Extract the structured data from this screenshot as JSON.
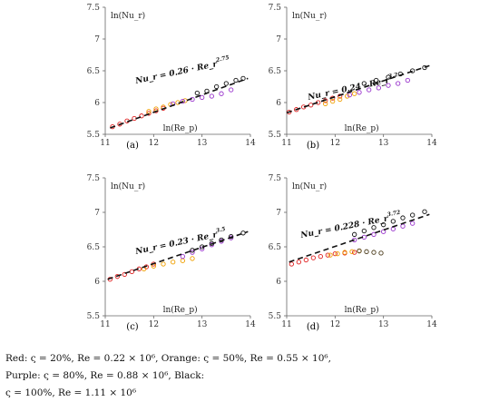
{
  "chart_data": [
    {
      "type": "scatter",
      "label": "(a)",
      "xlabel": "ln(Re_p)",
      "ylabel": "ln(Nu_r)",
      "xlim": [
        11,
        14
      ],
      "ylim": [
        5.5,
        7.5
      ],
      "xticks": [
        11,
        12,
        13,
        14
      ],
      "yticks": [
        5.5,
        6,
        6.5,
        7,
        7.5
      ],
      "annotation": {
        "base": "Nu_r = 0.26 · Re_r",
        "exp": "2.75"
      },
      "series": [
        {
          "color": "#e02020",
          "x": [
            11.15,
            11.3,
            11.45,
            11.6,
            11.75,
            11.9,
            12.05,
            12.2
          ],
          "y": [
            5.62,
            5.66,
            5.71,
            5.75,
            5.79,
            5.83,
            5.87,
            5.91
          ]
        },
        {
          "color": "#f0a000",
          "x": [
            11.9,
            12.05,
            12.2,
            12.35,
            12.5,
            12.65
          ],
          "y": [
            5.86,
            5.9,
            5.93,
            5.97,
            6.0,
            6.03
          ]
        },
        {
          "color": "#9933cc",
          "x": [
            12.4,
            12.6,
            12.8,
            13.0,
            13.2,
            13.4,
            13.6
          ],
          "y": [
            5.98,
            6.02,
            6.05,
            6.08,
            6.1,
            6.14,
            6.2
          ]
        },
        {
          "color": "#111111",
          "x": [
            12.9,
            13.1,
            13.3,
            13.5,
            13.7,
            13.85
          ],
          "y": [
            6.15,
            6.18,
            6.25,
            6.3,
            6.35,
            6.38
          ]
        }
      ],
      "fit": {
        "x": [
          11.1,
          13.95
        ],
        "y": [
          5.6,
          6.38
        ]
      }
    },
    {
      "type": "scatter",
      "label": "(b)",
      "xlabel": "ln(Re_p)",
      "ylabel": "ln(Nu_r)",
      "xlim": [
        11,
        14
      ],
      "ylim": [
        5.5,
        7.5
      ],
      "xticks": [
        11,
        12,
        13,
        14
      ],
      "yticks": [
        5.5,
        6,
        6.5,
        7,
        7.5
      ],
      "annotation": {
        "base": "Nu_r = 0.24 · Re_r",
        "exp": "3.2"
      },
      "series": [
        {
          "color": "#e02020",
          "x": [
            11.05,
            11.2,
            11.35,
            11.5,
            11.65,
            11.8,
            11.95,
            12.1
          ],
          "y": [
            5.85,
            5.89,
            5.93,
            5.96,
            6.0,
            6.03,
            6.07,
            6.1
          ]
        },
        {
          "color": "#f0a000",
          "x": [
            11.8,
            11.95,
            12.1,
            12.25,
            12.4
          ],
          "y": [
            5.98,
            6.02,
            6.05,
            6.1,
            6.14
          ]
        },
        {
          "color": "#9933cc",
          "x": [
            12.3,
            12.5,
            12.7,
            12.9,
            13.1,
            13.3,
            13.5
          ],
          "y": [
            6.12,
            6.16,
            6.2,
            6.23,
            6.27,
            6.3,
            6.35
          ]
        },
        {
          "color": "#111111",
          "x": [
            12.6,
            12.85,
            13.1,
            13.35,
            13.6,
            13.85
          ],
          "y": [
            6.3,
            6.35,
            6.4,
            6.45,
            6.5,
            6.55
          ]
        }
      ],
      "fit": {
        "x": [
          11.0,
          13.95
        ],
        "y": [
          5.84,
          6.58
        ]
      }
    },
    {
      "type": "scatter",
      "label": "(c)",
      "xlabel": "ln(Re_p)",
      "ylabel": "ln(Nu_r)",
      "xlim": [
        11,
        14
      ],
      "ylim": [
        5.5,
        7.5
      ],
      "xticks": [
        11,
        12,
        13,
        14
      ],
      "yticks": [
        5.5,
        6,
        6.5,
        7,
        7.5
      ],
      "annotation": {
        "base": "Nu_r = 0.23 · Re_r",
        "exp": "3.5"
      },
      "series": [
        {
          "color": "#e02020",
          "x": [
            11.1,
            11.25,
            11.4,
            11.55,
            11.7,
            11.85,
            12.0
          ],
          "y": [
            6.03,
            6.07,
            6.1,
            6.14,
            6.18,
            6.21,
            6.25
          ]
        },
        {
          "color": "#f0a000",
          "x": [
            11.8,
            12.0,
            12.2,
            12.4,
            12.6,
            12.8
          ],
          "y": [
            6.18,
            6.22,
            6.25,
            6.28,
            6.3,
            6.33
          ]
        },
        {
          "color": "#9933cc",
          "x": [
            12.6,
            12.8,
            13.0,
            13.2,
            13.4,
            13.6
          ],
          "y": [
            6.36,
            6.42,
            6.47,
            6.53,
            6.58,
            6.63
          ]
        },
        {
          "color": "#111111",
          "x": [
            12.8,
            13.0,
            13.2,
            13.4,
            13.6,
            13.85
          ],
          "y": [
            6.45,
            6.5,
            6.55,
            6.6,
            6.65,
            6.7
          ]
        }
      ],
      "fit": {
        "x": [
          11.05,
          13.95
        ],
        "y": [
          6.03,
          6.72
        ]
      }
    },
    {
      "type": "scatter",
      "label": "(d)",
      "xlabel": "ln(Re_p)",
      "ylabel": "ln(Nu_r)",
      "xlim": [
        11,
        14
      ],
      "ylim": [
        5.5,
        7.5
      ],
      "xticks": [
        11,
        12,
        13,
        14
      ],
      "yticks": [
        5.5,
        6,
        6.5,
        7,
        7.5
      ],
      "annotation": {
        "base": "Nu_r = 0.228 · Re_r",
        "exp": "3.72"
      },
      "series": [
        {
          "color": "#e02020",
          "x": [
            11.1,
            11.25,
            11.4,
            11.55,
            11.7,
            11.85,
            12.0,
            12.2,
            12.4
          ],
          "y": [
            6.25,
            6.28,
            6.31,
            6.34,
            6.36,
            6.38,
            6.4,
            6.41,
            6.42
          ]
        },
        {
          "color": "#f0a000",
          "x": [
            11.9,
            12.05,
            12.2,
            12.35,
            12.5
          ],
          "y": [
            6.38,
            6.4,
            6.42,
            6.43,
            6.44
          ]
        },
        {
          "color": "#9933cc",
          "x": [
            12.4,
            12.6,
            12.8,
            13.0,
            13.2,
            13.4,
            13.6
          ],
          "y": [
            6.6,
            6.64,
            6.68,
            6.72,
            6.76,
            6.8,
            6.84
          ]
        },
        {
          "color": "#111111",
          "x": [
            12.4,
            12.6,
            12.8,
            13.0,
            13.2,
            13.4,
            13.6,
            13.85
          ],
          "y": [
            6.68,
            6.73,
            6.78,
            6.82,
            6.87,
            6.92,
            6.96,
            7.01
          ]
        },
        {
          "color": "#4a3a1a",
          "x": [
            12.5,
            12.65,
            12.8,
            12.95
          ],
          "y": [
            6.44,
            6.43,
            6.42,
            6.41
          ]
        }
      ],
      "fit": {
        "x": [
          11.05,
          13.95
        ],
        "y": [
          6.28,
          6.97
        ]
      }
    }
  ],
  "caption": {
    "red": "Red:  ς = 20%,  Re = 0.22 × 10⁶,",
    "orange": "Orange:  ς = 50%,  Re = 0.55 × 10⁶,",
    "purple": "Purple:  ς = 80%, Re = 0.88 × 10⁶,",
    "black_label": "Black:",
    "black": "ς = 100%, Re = 1.11 × 10⁶"
  }
}
